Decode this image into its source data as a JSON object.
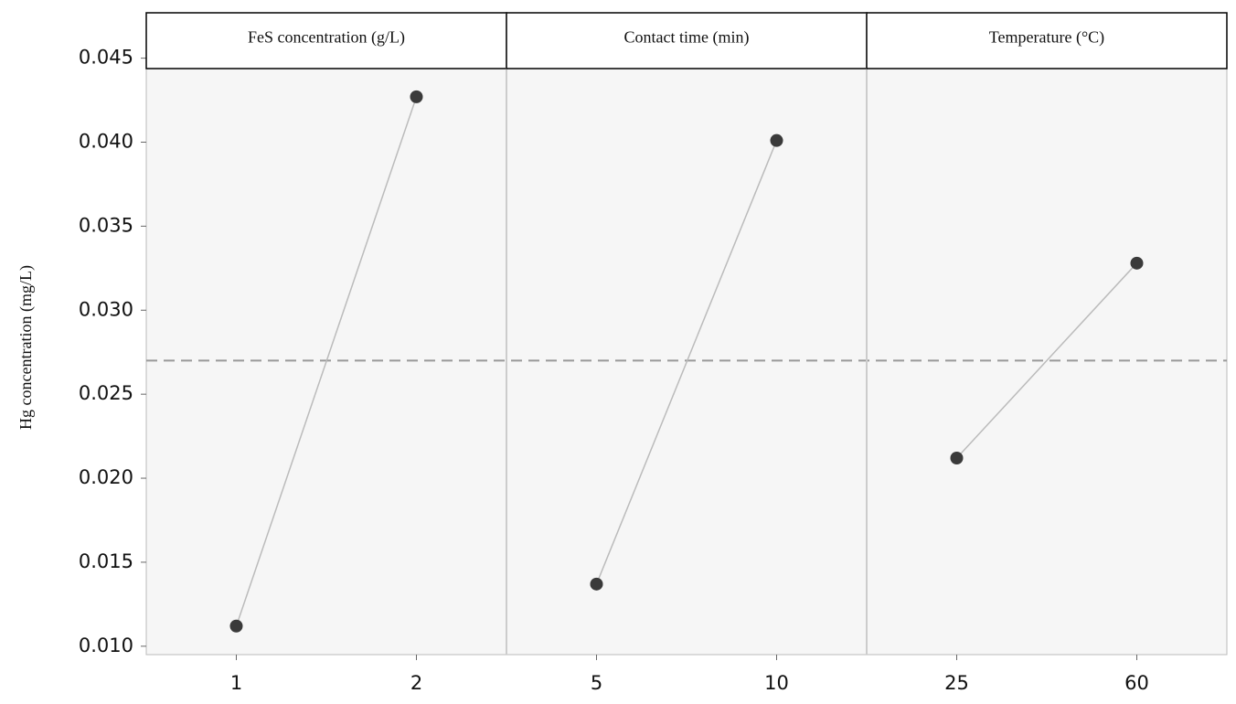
{
  "chart_data": {
    "type": "main-effects",
    "y_label": "Hg concentration (mg/L)",
    "ylim": [
      0.0095,
      0.0477
    ],
    "yticks": [
      {
        "value": 0.01,
        "label": "0.010"
      },
      0.015,
      {
        "value": 0.02,
        "label": "0.020"
      },
      0.025,
      {
        "value": 0.03,
        "label": "0.030"
      },
      0.035,
      {
        "value": 0.04,
        "label": "0.040"
      },
      0.045
    ],
    "reference_line": 0.027,
    "color": "#3a3a3a",
    "panels": [
      {
        "title": "FeS concentration (g/L)",
        "categories": [
          "1",
          "2"
        ],
        "values": [
          0.0112,
          0.0427
        ]
      },
      {
        "title": "Contact time (min)",
        "categories": [
          "5",
          "10"
        ],
        "values": [
          0.0137,
          0.0401
        ]
      },
      {
        "title": "Temperature (°C)",
        "categories": [
          "25",
          "60"
        ],
        "values": [
          0.0212,
          0.0328
        ]
      }
    ]
  }
}
